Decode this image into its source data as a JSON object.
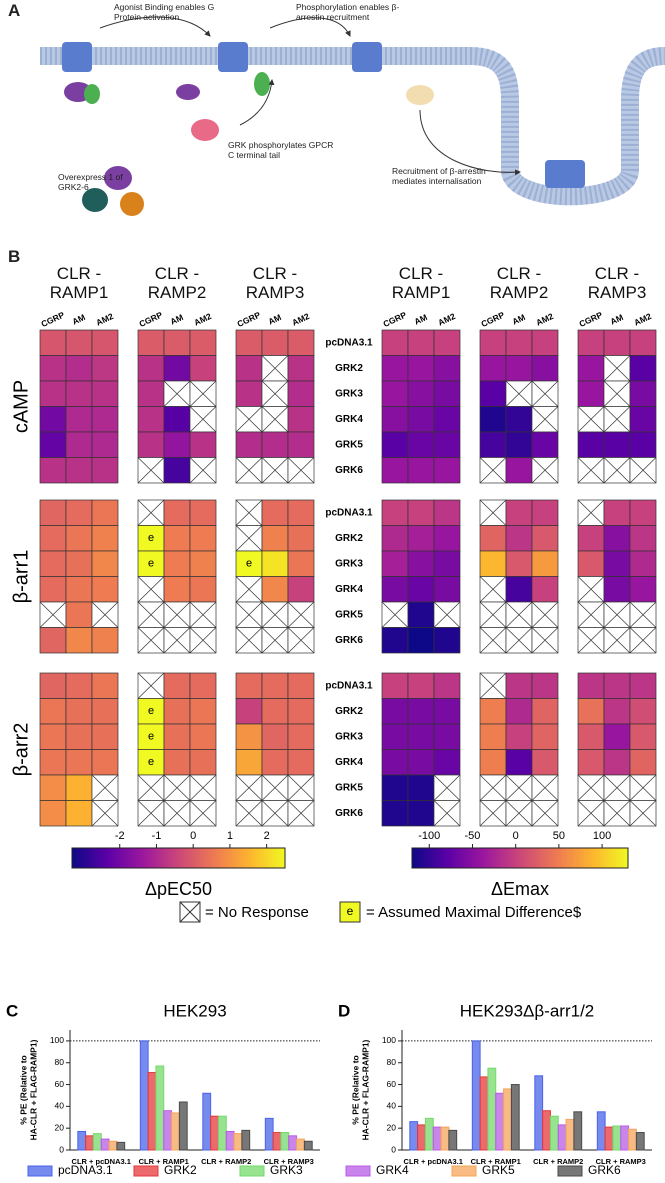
{
  "panel_a": {
    "label": "A",
    "notes": [
      "Agonist Binding enables G Protein activation",
      "Phosphorylation enables β-arrestin recruitment",
      "GRK phosphorylates GPCR C terminal tail",
      "Overexpress 1 of GRK2-6",
      "Recruitment of β-arrestin mediates internalisation"
    ]
  },
  "panel_b": {
    "label": "B",
    "assays": [
      "cAMP",
      "β-arr1",
      "β-arr2"
    ],
    "receptors": [
      "CLR -RAMP1",
      "CLR -RAMP2",
      "CLR -RAMP3"
    ],
    "agonists": [
      "CGRP",
      "AM",
      "AM2"
    ],
    "rows": [
      "pcDNA3.1",
      "GRK2",
      "GRK3",
      "GRK4",
      "GRK5",
      "GRK6"
    ],
    "colors": [
      "#0d0887",
      "#5c01a6",
      "#9c179e",
      "#cc4778",
      "#ed7953",
      "#fdb42f",
      "#f0f921"
    ],
    "pec50": {
      "colorbar_label": "ΔpEC50",
      "xlim": [
        -3.3,
        2.5
      ],
      "xticks": [
        -2,
        -1,
        0,
        1,
        2
      ],
      "data": [
        [
          [
            [
              -0.1,
              -0.1,
              -0.1
            ],
            [
              -0.8,
              -0.9,
              -0.7
            ],
            [
              -0.8,
              -0.8,
              -0.8
            ],
            [
              -2.0,
              -1.0,
              -1.0
            ],
            [
              -2.2,
              -1.0,
              -1.0
            ],
            [
              -0.8,
              -0.8,
              -0.8
            ]
          ],
          [
            [
              0,
              0,
              0
            ],
            [
              -0.8,
              -2.0,
              -0.5
            ],
            [
              -0.8,
              null,
              null
            ],
            [
              -0.8,
              -2.4,
              null
            ],
            [
              -0.8,
              -1.5,
              -0.8
            ],
            [
              null,
              -2.6,
              null
            ]
          ],
          [
            [
              0,
              0,
              0
            ],
            [
              -0.8,
              null,
              -0.8
            ],
            [
              -0.8,
              null,
              -0.9
            ],
            [
              null,
              null,
              -0.8
            ],
            [
              -0.9,
              -0.9,
              -0.9
            ],
            [
              null,
              null,
              null
            ]
          ]
        ],
        [
          [
            [
              0.2,
              0.3,
              0.5
            ],
            [
              0.3,
              0.5,
              0.7
            ],
            [
              0.3,
              0.4,
              0.8
            ],
            [
              0.3,
              0.5,
              0.6
            ],
            [
              null,
              0.5,
              null
            ],
            [
              0.2,
              0.8,
              0.7
            ]
          ],
          [
            [
              null,
              0.3,
              0.3
            ],
            [
              {
                "value": 2.5,
                "label": "e"
              },
              0.6,
              0.6
            ],
            [
              {
                "value": 2.5,
                "label": "e"
              },
              0.6,
              0.7
            ],
            [
              null,
              0.6,
              0.5
            ],
            [
              null,
              null,
              null
            ],
            [
              null,
              null,
              null
            ]
          ],
          [
            [
              null,
              0.3,
              0.3
            ],
            [
              null,
              0.7,
              0.4
            ],
            [
              {
                "value": 2.5,
                "label": "e"
              },
              2.2,
              0.5
            ],
            [
              null,
              0.8,
              -0.5
            ],
            [
              null,
              null,
              null
            ],
            [
              null,
              null,
              null
            ]
          ]
        ],
        [
          [
            [
              0.2,
              0.3,
              0.5
            ],
            [
              0.5,
              0.4,
              0.4
            ],
            [
              0.5,
              0.4,
              0.4
            ],
            [
              0.5,
              0.5,
              0.5
            ],
            [
              0.9,
              1.5,
              null
            ],
            [
              0.9,
              1.5,
              null
            ]
          ],
          [
            [
              null,
              0.3,
              0.3
            ],
            [
              {
                "value": 2.5,
                "label": "e"
              },
              0.4,
              0.5
            ],
            [
              {
                "value": 2.5,
                "label": "e"
              },
              0.4,
              0.5
            ],
            [
              {
                "value": 2.5,
                "label": "e"
              },
              0.4,
              0.4
            ],
            [
              null,
              null,
              null
            ],
            [
              null,
              null,
              null
            ]
          ],
          [
            [
              0.3,
              0.3,
              0.3
            ],
            [
              -0.5,
              0.3,
              0.3
            ],
            [
              1.0,
              0.2,
              0.3
            ],
            [
              1.3,
              0.3,
              0.3
            ],
            [
              null,
              null,
              null
            ],
            [
              null,
              null,
              null
            ]
          ]
        ]
      ]
    },
    "emax": {
      "colorbar_label": "ΔEmax",
      "xlim": [
        -120,
        130
      ],
      "xticks": [
        -100,
        -50,
        0,
        50,
        100
      ],
      "data": [
        [
          [
            [
              0,
              0,
              0
            ],
            [
              -40,
              -40,
              -50
            ],
            [
              -40,
              -50,
              -60
            ],
            [
              -50,
              -60,
              -70
            ],
            [
              -80,
              -70,
              -70
            ],
            [
              -40,
              -40,
              -40
            ]
          ],
          [
            [
              0,
              0,
              0
            ],
            [
              -40,
              -40,
              -50
            ],
            [
              -80,
              null,
              null
            ],
            [
              -110,
              -100,
              null
            ],
            [
              -90,
              -100,
              -70
            ],
            [
              null,
              -40,
              null
            ]
          ],
          [
            [
              0,
              0,
              0
            ],
            [
              -40,
              null,
              -80
            ],
            [
              -40,
              null,
              -60
            ],
            [
              null,
              null,
              -70
            ],
            [
              -80,
              -80,
              -80
            ],
            [
              null,
              null,
              null
            ]
          ]
        ],
        [
          [
            [
              0,
              0,
              -10
            ],
            [
              -20,
              -30,
              -40
            ],
            [
              -30,
              -50,
              -60
            ],
            [
              -60,
              -70,
              -60
            ],
            [
              null,
              -110,
              null
            ],
            [
              -110,
              -120,
              -110
            ]
          ],
          [
            [
              null,
              0,
              0
            ],
            [
              30,
              -10,
              20
            ],
            [
              90,
              20,
              70
            ],
            [
              null,
              -90,
              0
            ],
            [
              null,
              null,
              null
            ],
            [
              null,
              null,
              null
            ]
          ],
          [
            [
              null,
              0,
              0
            ],
            [
              0,
              -50,
              -10
            ],
            [
              20,
              -60,
              -20
            ],
            [
              null,
              -60,
              -40
            ],
            [
              null,
              null,
              null
            ],
            [
              null,
              null,
              null
            ]
          ]
        ],
        [
          [
            [
              0,
              0,
              -10
            ],
            [
              -60,
              -60,
              -60
            ],
            [
              -60,
              -60,
              -60
            ],
            [
              -60,
              -60,
              -70
            ],
            [
              -110,
              -110,
              null
            ],
            [
              -110,
              -110,
              null
            ]
          ],
          [
            [
              null,
              -10,
              -10
            ],
            [
              50,
              -20,
              30
            ],
            [
              50,
              0,
              30
            ],
            [
              50,
              -80,
              20
            ],
            [
              null,
              null,
              null
            ],
            [
              null,
              null,
              null
            ]
          ],
          [
            [
              -10,
              -10,
              -10
            ],
            [
              40,
              -10,
              10
            ],
            [
              20,
              -40,
              20
            ],
            [
              20,
              -10,
              30
            ],
            [
              null,
              null,
              null
            ],
            [
              null,
              null,
              null
            ]
          ]
        ]
      ]
    },
    "legend": {
      "no_response": "= No Response",
      "assumed_marker": "e",
      "assumed": "= Assumed Maximal Difference$"
    }
  },
  "chart_data": [
    {
      "type": "bar",
      "label": "C",
      "title": "HEK293",
      "ylabel": [
        "% PE (Relative to",
        "HA-CLR + FLAG-RAMP1)"
      ],
      "categories": [
        "CLR + pcDNA3.1",
        "CLR + RAMP1",
        "CLR + RAMP2",
        "CLR + RAMP3"
      ],
      "ylim": [
        0,
        110
      ],
      "yticks": [
        0,
        20,
        40,
        60,
        80,
        100
      ],
      "reference_line": 100,
      "series": [
        {
          "name": "pcDNA3.1",
          "color": "#4a63e8",
          "values": [
            17,
            100,
            52,
            29
          ]
        },
        {
          "name": "GRK2",
          "color": "#e5383b",
          "values": [
            13,
            71,
            31,
            16
          ]
        },
        {
          "name": "GRK3",
          "color": "#74d96b",
          "values": [
            15,
            77,
            31,
            16
          ]
        },
        {
          "name": "GRK4",
          "color": "#b85ce6",
          "values": [
            10,
            36,
            17,
            13
          ]
        },
        {
          "name": "GRK5",
          "color": "#f4a45a",
          "values": [
            8,
            34,
            15,
            10
          ]
        },
        {
          "name": "GRK6",
          "color": "#4a4a4a",
          "values": [
            7,
            44,
            18,
            8
          ]
        }
      ]
    },
    {
      "type": "bar",
      "label": "D",
      "title": "HEK293Δβ-arr1/2",
      "ylabel": [
        "% PE (Relative to",
        "HA-CLR + FLAG-RAMP1)"
      ],
      "categories": [
        "CLR + pcDNA3.1",
        "CLR + RAMP1",
        "CLR + RAMP2",
        "CLR + RAMP3"
      ],
      "ylim": [
        0,
        110
      ],
      "yticks": [
        0,
        20,
        40,
        60,
        80,
        100
      ],
      "reference_line": 100,
      "series": [
        {
          "name": "pcDNA3.1",
          "color": "#4a63e8",
          "values": [
            26,
            100,
            68,
            35
          ]
        },
        {
          "name": "GRK2",
          "color": "#e5383b",
          "values": [
            23,
            67,
            36,
            21
          ]
        },
        {
          "name": "GRK3",
          "color": "#74d96b",
          "values": [
            29,
            75,
            31,
            22
          ]
        },
        {
          "name": "GRK4",
          "color": "#b85ce6",
          "values": [
            21,
            52,
            23,
            22
          ]
        },
        {
          "name": "GRK5",
          "color": "#f4a45a",
          "values": [
            21,
            56,
            28,
            19
          ]
        },
        {
          "name": "GRK6",
          "color": "#4a4a4a",
          "values": [
            18,
            60,
            35,
            16
          ]
        }
      ]
    }
  ]
}
